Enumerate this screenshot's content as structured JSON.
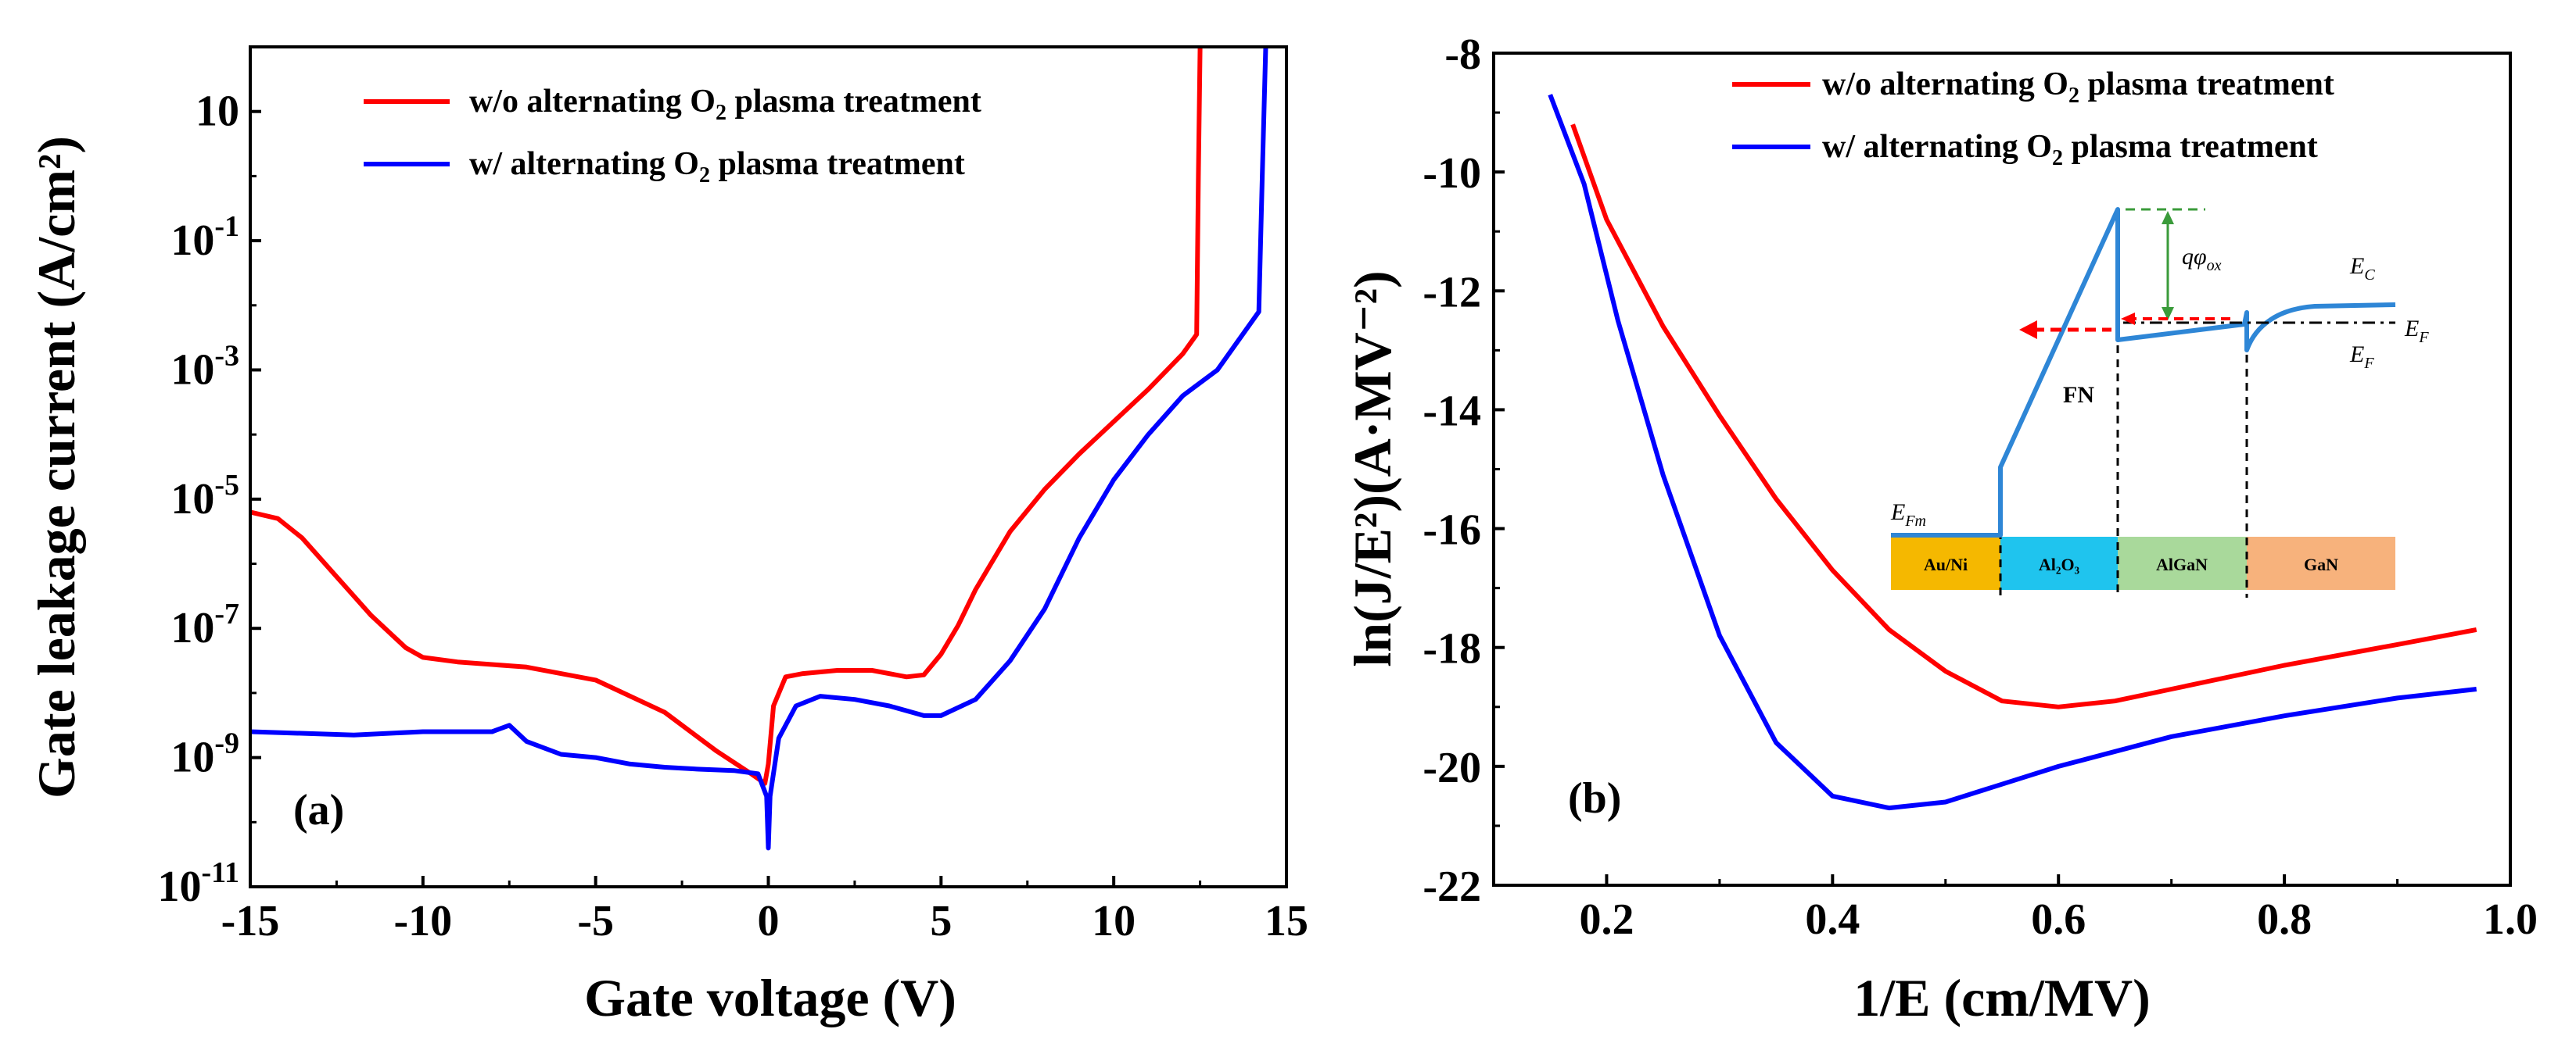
{
  "chart_data": [
    {
      "type": "line",
      "panel_label": "(a)",
      "xlabel": "Gate voltage (V)",
      "ylabel": "Gate leakage current (A/cm²)",
      "yscale": "log",
      "xlim": [
        -15,
        15
      ],
      "ylim_log10": [
        -11,
        2
      ],
      "x_ticks": [
        "-15",
        "-10",
        "-5",
        "0",
        "5",
        "10",
        "15"
      ],
      "y_ticks": [
        {
          "base": "10",
          "exp": "-11"
        },
        {
          "base": "10",
          "exp": "-9"
        },
        {
          "base": "10",
          "exp": "-7"
        },
        {
          "base": "10",
          "exp": "-5"
        },
        {
          "base": "10",
          "exp": "-3"
        },
        {
          "base": "10",
          "exp": "-1"
        },
        {
          "base": "10",
          "exp": ""
        }
      ],
      "legend": [
        {
          "prefix": "w/o alternating O",
          "sub": "2",
          "suffix": " plasma treatment",
          "color": "#ff0000"
        },
        {
          "prefix": "w/  alternating O",
          "sub": "2",
          "suffix": " plasma treatment",
          "color": "#0000ff"
        }
      ],
      "series": [
        {
          "name": "w/o alternating O2 plasma treatment",
          "color": "#ff0000",
          "x": [
            -15,
            -14.2,
            -13.5,
            -12.5,
            -11.5,
            -10.5,
            -10,
            -9,
            -7,
            -5,
            -3,
            -1.5,
            -0.5,
            -0.1,
            0,
            0.15,
            0.5,
            1,
            2,
            3,
            4,
            4.5,
            5,
            5.5,
            6,
            7,
            8,
            9,
            10,
            11,
            12,
            12.4,
            12.45,
            12.5
          ],
          "y_log10": [
            -5.2,
            -5.3,
            -5.6,
            -6.2,
            -6.8,
            -7.3,
            -7.45,
            -7.52,
            -7.6,
            -7.8,
            -8.3,
            -8.9,
            -9.25,
            -9.4,
            -9.1,
            -8.2,
            -7.75,
            -7.7,
            -7.65,
            -7.65,
            -7.75,
            -7.72,
            -7.4,
            -6.95,
            -6.4,
            -5.5,
            -4.85,
            -4.3,
            -3.8,
            -3.3,
            -2.75,
            -2.45,
            0,
            2
          ]
        },
        {
          "name": "w/ alternating O2 plasma treatment",
          "color": "#0000ff",
          "x": [
            -15,
            -12,
            -10,
            -8,
            -7.5,
            -7,
            -6,
            -5,
            -4,
            -3,
            -2,
            -1,
            -0.3,
            -0.05,
            0,
            0.05,
            0.3,
            0.8,
            1.5,
            2.5,
            3.5,
            4.5,
            5,
            6,
            7,
            8,
            9,
            10,
            11,
            12,
            13,
            14.2,
            14.3,
            14.4
          ],
          "y_log10": [
            -8.6,
            -8.65,
            -8.6,
            -8.6,
            -8.5,
            -8.75,
            -8.95,
            -9.0,
            -9.1,
            -9.15,
            -9.18,
            -9.2,
            -9.25,
            -9.6,
            -10.4,
            -9.6,
            -8.7,
            -8.2,
            -8.05,
            -8.1,
            -8.2,
            -8.35,
            -8.35,
            -8.1,
            -7.5,
            -6.7,
            -5.6,
            -4.7,
            -4.0,
            -3.4,
            -3.0,
            -2.1,
            0,
            2
          ]
        }
      ]
    },
    {
      "type": "line",
      "panel_label": "(b)",
      "xlabel": "1/E (cm/MV)",
      "ylabel": "ln(J/E²)(A·MV⁻²)",
      "xlim": [
        0.1,
        1.0
      ],
      "ylim": [
        -22,
        -8
      ],
      "x_ticks": [
        "0.2",
        "0.4",
        "0.6",
        "0.8",
        "1.0"
      ],
      "y_ticks": [
        "-8",
        "-10",
        "-12",
        "-14",
        "-16",
        "-18",
        "-20",
        "-22"
      ],
      "legend": [
        {
          "prefix": "w/o alternating O",
          "sub": "2",
          "suffix": " plasma treatment",
          "color": "#ff0000"
        },
        {
          "prefix": "w/   alternating O",
          "sub": "2",
          "suffix": " plasma treatment",
          "color": "#0000ff"
        }
      ],
      "series": [
        {
          "name": "w/o alternating O2 plasma treatment",
          "color": "#ff0000",
          "x": [
            0.17,
            0.2,
            0.25,
            0.3,
            0.35,
            0.4,
            0.45,
            0.5,
            0.55,
            0.6,
            0.65,
            0.7,
            0.8,
            0.9,
            0.97
          ],
          "y": [
            -9.2,
            -10.8,
            -12.6,
            -14.1,
            -15.5,
            -16.7,
            -17.7,
            -18.4,
            -18.9,
            -19.0,
            -18.9,
            -18.7,
            -18.3,
            -17.95,
            -17.7
          ]
        },
        {
          "name": "w/ alternating O2 plasma treatment",
          "color": "#0000ff",
          "x": [
            0.15,
            0.18,
            0.21,
            0.25,
            0.3,
            0.35,
            0.4,
            0.45,
            0.5,
            0.55,
            0.6,
            0.7,
            0.8,
            0.9,
            0.97
          ],
          "y": [
            -8.7,
            -10.2,
            -12.5,
            -15.1,
            -17.8,
            -19.6,
            -20.5,
            -20.7,
            -20.6,
            -20.3,
            -20.0,
            -19.5,
            -19.15,
            -18.85,
            -18.7
          ]
        }
      ],
      "inset": {
        "labels": {
          "phi": "qφ",
          "phi_sub": "ox",
          "ec": "E",
          "ec_sub": "C",
          "ef": "E",
          "ef_sub": "F",
          "ef2": "E",
          "ef2_sub": "F",
          "efm": "E",
          "efm_sub": "Fm",
          "fn": "FN"
        },
        "layers": [
          {
            "label": "Au/Ni",
            "color": "#f5b800"
          },
          {
            "label": "Al₂O₃",
            "color": "#1fc4ee"
          },
          {
            "label": "AlGaN",
            "color": "#a9d99b"
          },
          {
            "label": "GaN",
            "color": "#f7b27c"
          }
        ],
        "colors": {
          "band": "#2e86d6",
          "phi": "#3a9b3a",
          "fn": "#ff0000"
        }
      }
    }
  ]
}
